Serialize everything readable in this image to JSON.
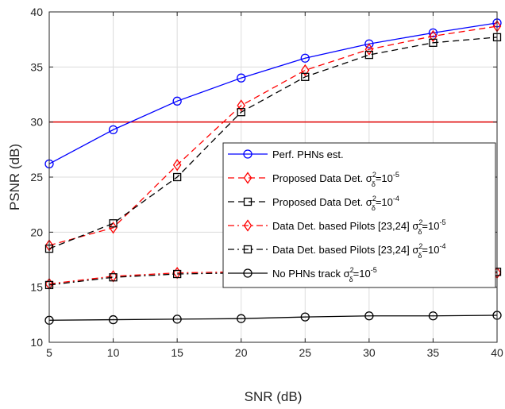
{
  "chart_data": {
    "type": "line",
    "xlabel": "SNR (dB)",
    "ylabel": "PSNR (dB)",
    "xlim": [
      5,
      40
    ],
    "ylim": [
      10,
      40
    ],
    "xticks": [
      "5",
      "10",
      "15",
      "20",
      "25",
      "30",
      "35",
      "40"
    ],
    "yticks": [
      "10",
      "15",
      "20",
      "25",
      "30",
      "35",
      "40"
    ],
    "grid": true,
    "legend_position": "lower-right",
    "x": [
      5,
      10,
      15,
      20,
      25,
      30,
      35,
      40
    ],
    "threshold": {
      "y": 30,
      "color": "#e00000"
    },
    "series": [
      {
        "name": "Perf. PHNs est.",
        "legend_parts": [
          {
            "t": "Perf. PHNs est."
          }
        ],
        "color": "#0000ff",
        "dash": "solid",
        "marker": "circle",
        "values": [
          26.2,
          29.3,
          31.9,
          34.0,
          35.8,
          37.1,
          38.1,
          39.0
        ]
      },
      {
        "name": "Proposed Data Det. σδ2=10-5",
        "legend_parts": [
          {
            "t": "Proposed Data Det. σ"
          },
          {
            "t": "2",
            "s": "sup"
          },
          {
            "t": "δ",
            "s": "sub"
          },
          {
            "t": "=10"
          },
          {
            "t": "-5",
            "s": "sup"
          }
        ],
        "color": "#ff0000",
        "dash": "dashed",
        "marker": "diamond",
        "values": [
          18.8,
          20.4,
          26.1,
          31.5,
          34.7,
          36.6,
          37.8,
          38.7
        ]
      },
      {
        "name": "Proposed Data Det. σδ2=10-4",
        "legend_parts": [
          {
            "t": "Proposed Data Det. σ"
          },
          {
            "t": "2",
            "s": "sup"
          },
          {
            "t": "δ",
            "s": "sub"
          },
          {
            "t": "=10"
          },
          {
            "t": "-4",
            "s": "sup"
          }
        ],
        "color": "#000000",
        "dash": "dashed",
        "marker": "square",
        "values": [
          18.5,
          20.8,
          25.0,
          30.9,
          34.1,
          36.1,
          37.2,
          37.7
        ]
      },
      {
        "name": "Data Det. based Pilots [23,24] σδ2=10-5",
        "legend_parts": [
          {
            "t": "Data Det. based Pilots [23,24] σ"
          },
          {
            "t": "2",
            "s": "sup"
          },
          {
            "t": "δ",
            "s": "sub"
          },
          {
            "t": "=10"
          },
          {
            "t": "-5",
            "s": "sup"
          }
        ],
        "color": "#ff0000",
        "dash": "dashdot",
        "marker": "diamond",
        "values": [
          15.3,
          16.0,
          16.3,
          16.4,
          16.4,
          16.4,
          16.4,
          16.3
        ]
      },
      {
        "name": "Data Det. based Pilots [23,24] σδ2=10-4",
        "legend_parts": [
          {
            "t": "Data Det. based Pilots [23,24] σ"
          },
          {
            "t": "2",
            "s": "sup"
          },
          {
            "t": "δ",
            "s": "sub"
          },
          {
            "t": "=10"
          },
          {
            "t": "-4",
            "s": "sup"
          }
        ],
        "color": "#000000",
        "dash": "dashdot",
        "marker": "square",
        "values": [
          15.2,
          15.9,
          16.2,
          16.3,
          16.3,
          16.3,
          16.3,
          16.4
        ]
      },
      {
        "name": "No PHNs track σδ2=10-5",
        "legend_parts": [
          {
            "t": "No PHNs track σ"
          },
          {
            "t": "2",
            "s": "sup"
          },
          {
            "t": "δ",
            "s": "sub"
          },
          {
            "t": "=10"
          },
          {
            "t": "-5",
            "s": "sup"
          }
        ],
        "color": "#000000",
        "dash": "solid",
        "marker": "circle",
        "values": [
          12.0,
          12.05,
          12.1,
          12.15,
          12.3,
          12.4,
          12.4,
          12.45
        ]
      }
    ]
  }
}
